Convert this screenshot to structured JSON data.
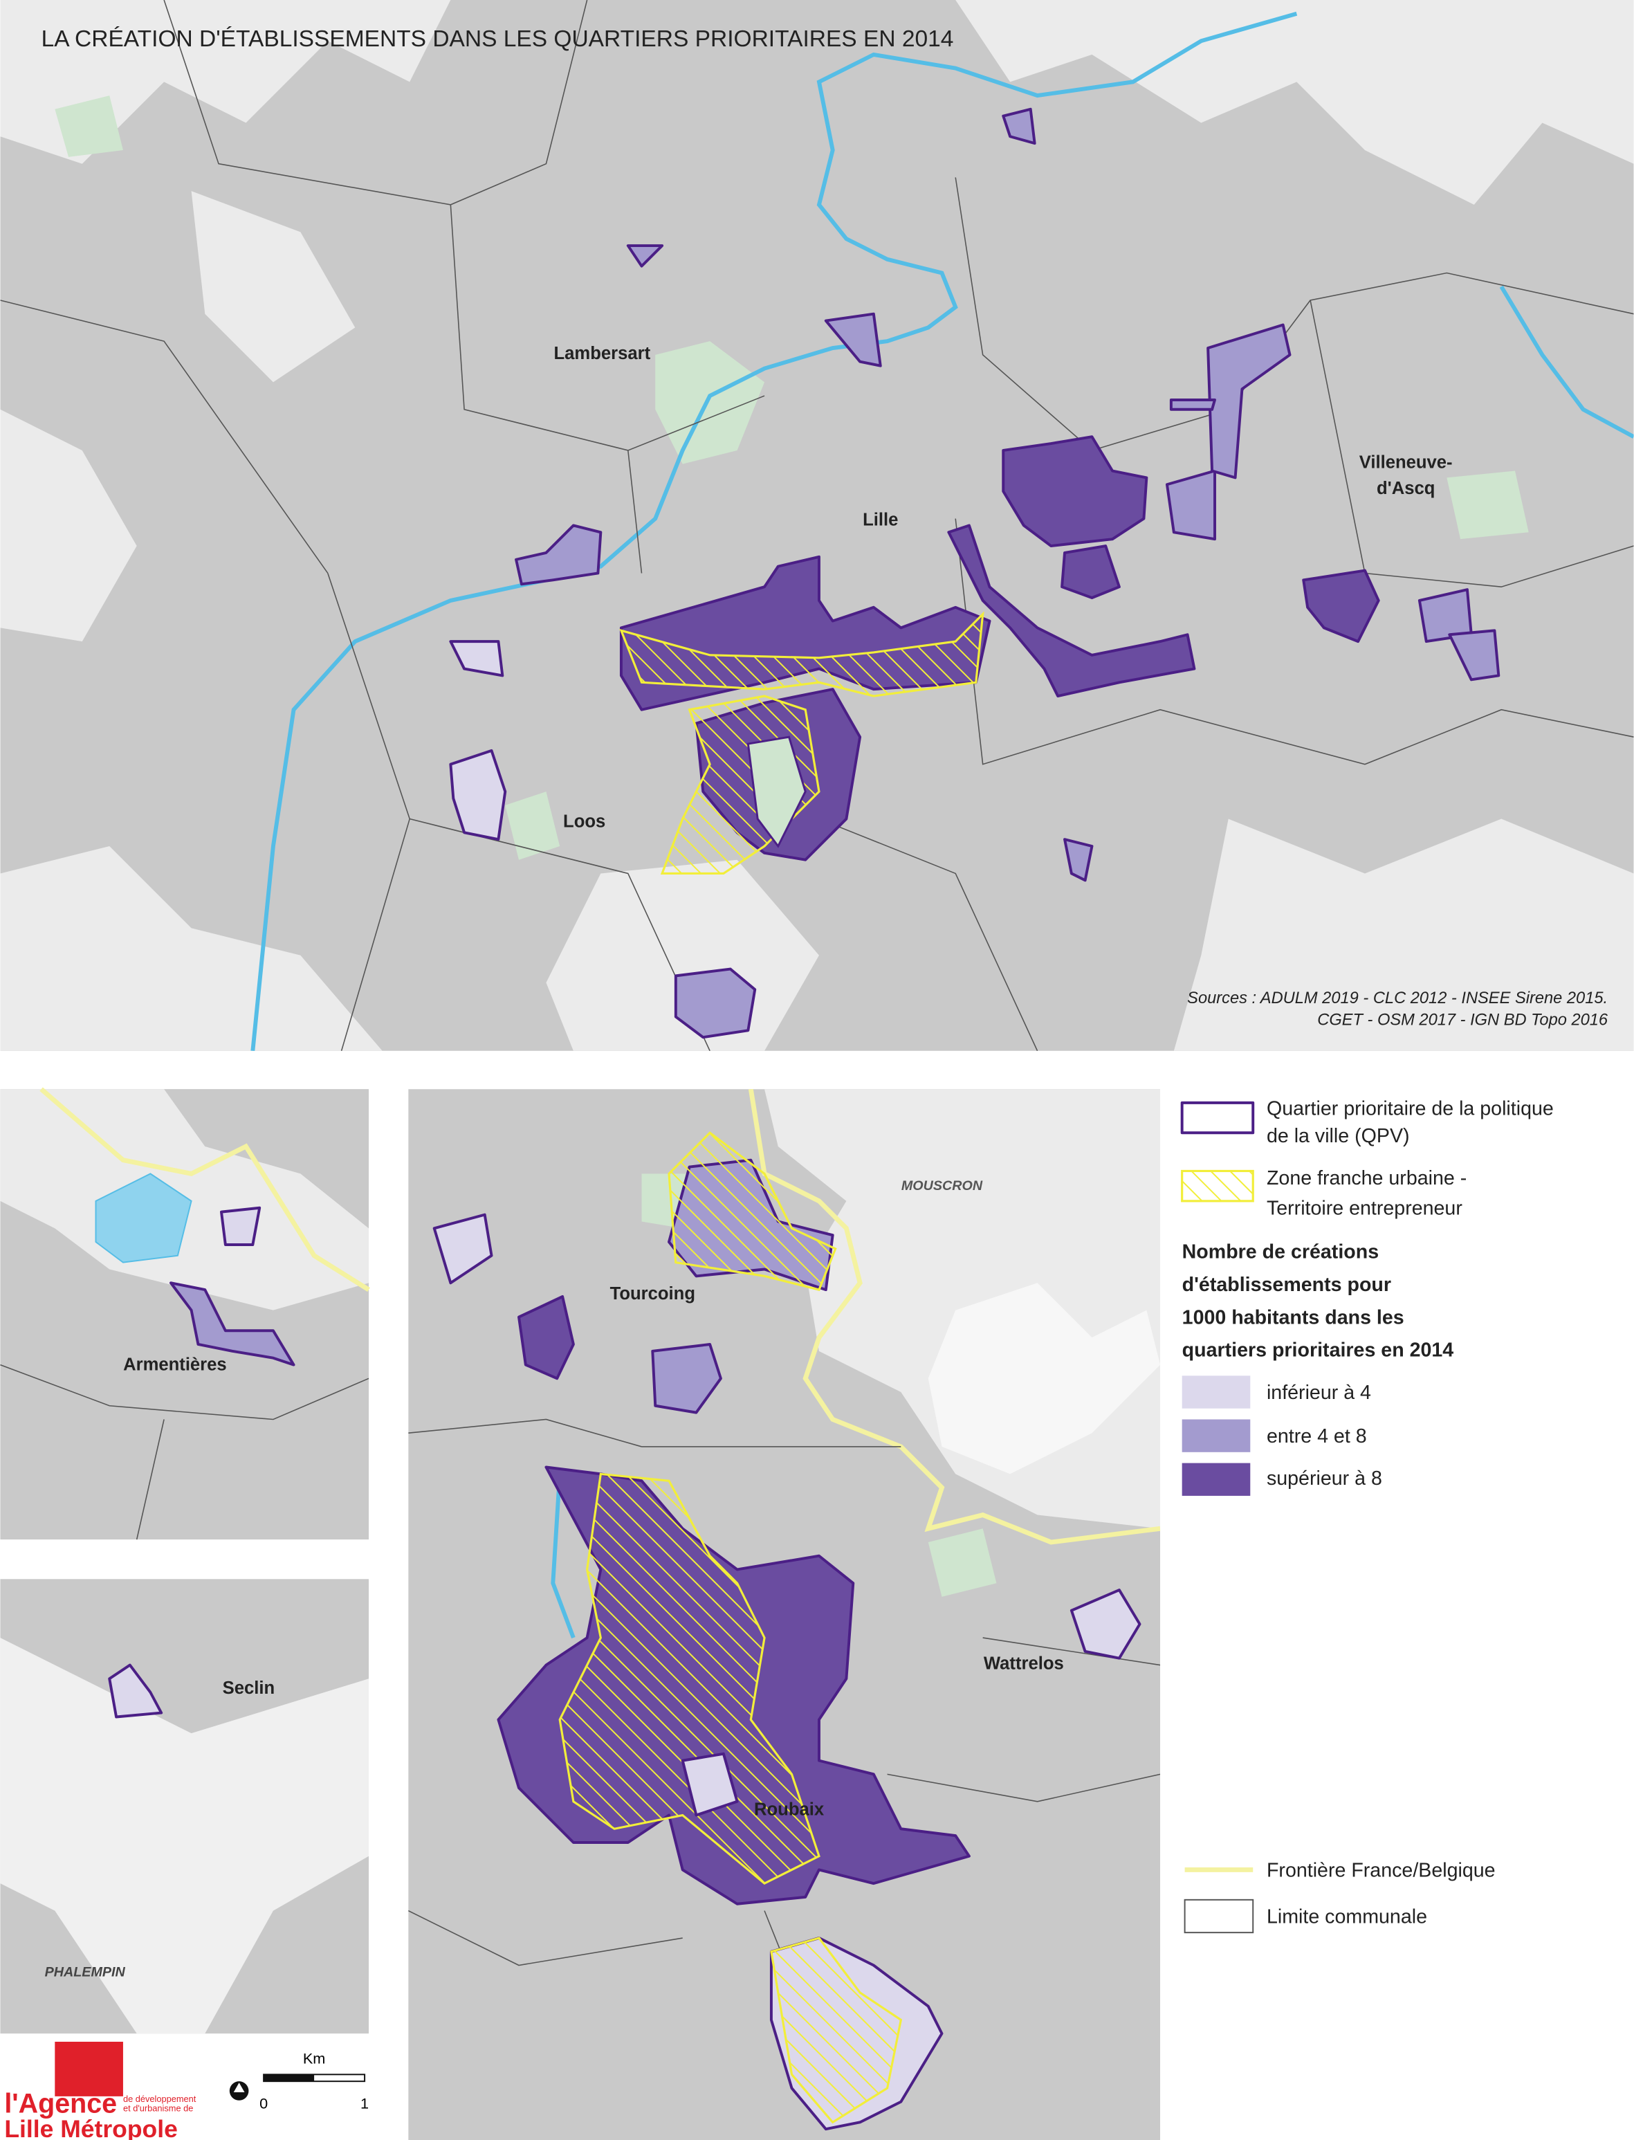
{
  "title": "LA CRÉATION D'ÉTABLISSEMENTS DANS LES QUARTIERS PRIORITAIRES EN 2014",
  "sources": [
    "Sources : ADULM 2019 - CLC 2012 - INSEE Sirene 2015.",
    "CGET - OSM 2017 - IGN BD Topo 2016"
  ],
  "places": {
    "lambersart": "Lambersart",
    "lille": "Lille",
    "villeneuve": [
      "Villeneuve-",
      "d'Ascq"
    ],
    "loos": "Loos",
    "armentieres": "Armentières",
    "seclin": "Seclin",
    "phalempin": "PHALEMPIN",
    "mouscron": "MOUSCRON",
    "tourcoing": "Tourcoing",
    "wattrelos": "Wattrelos",
    "roubaix": "Roubaix"
  },
  "legend": {
    "qpv": [
      "Quartier prioritaire de la politique",
      "de la ville (QPV)"
    ],
    "zfu": [
      "Zone franche urbaine -",
      "Territoire entrepreneur"
    ],
    "heading": [
      "Nombre de créations",
      "d'établissements pour",
      "1000 habitants dans les",
      "quartiers prioritaires en 2014"
    ],
    "classes": [
      "inférieur à 4",
      "entre 4 et 8",
      "supérieur à 8"
    ],
    "border": "Frontière France/Belgique",
    "commune": "Limite communale"
  },
  "scale": {
    "unit": "Km",
    "start": "0",
    "end": "1"
  },
  "logo": {
    "name": "l'Agence",
    "tagline": [
      "de développement",
      "et d'urbanisme de"
    ],
    "city": "Lille Métropole"
  }
}
